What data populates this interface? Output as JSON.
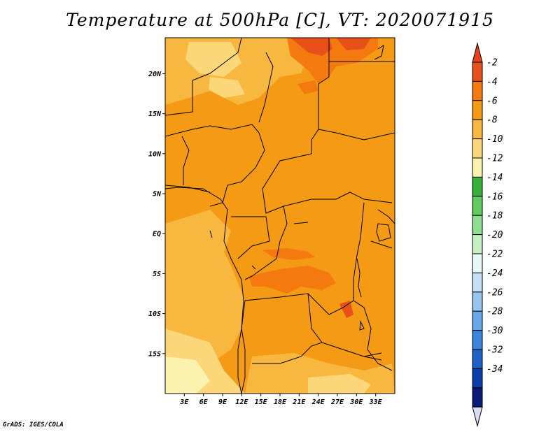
{
  "title": "Temperature at 500hPa [C], VT: 2020071915",
  "credit": "GrADS: IGES/COLA",
  "map": {
    "lon_range": [
      0,
      36
    ],
    "lat_range": [
      -20,
      24.5
    ],
    "lon_ticks": [
      3,
      6,
      9,
      12,
      15,
      18,
      21,
      24,
      27,
      30,
      33
    ],
    "lon_tick_labels": [
      "3E",
      "6E",
      "9E",
      "12E",
      "15E",
      "18E",
      "21E",
      "24E",
      "27E",
      "30E",
      "33E"
    ],
    "lat_ticks": [
      20,
      15,
      10,
      5,
      0,
      -5,
      -10,
      -15
    ],
    "lat_tick_labels": [
      "20N",
      "15N",
      "10N",
      "5N",
      "EQ",
      "5S",
      "10S",
      "15S"
    ]
  },
  "colorbar": {
    "labels": [
      "-2",
      "-4",
      "-6",
      "-8",
      "-10",
      "-12",
      "-14",
      "-16",
      "-18",
      "-20",
      "-22",
      "-24",
      "-26",
      "-28",
      "-30",
      "-32",
      "-34"
    ],
    "colors": [
      "#e8501a",
      "#f47a10",
      "#f59a15",
      "#f8b840",
      "#fbd77a",
      "#fcf2b0",
      "#36b23a",
      "#60cc60",
      "#90de90",
      "#c4f0c4",
      "#e6f8f8",
      "#c4e0f6",
      "#96c6f0",
      "#66a8ea",
      "#3a84e0",
      "#1e60c8",
      "#0a3ea8",
      "#0a1a78"
    ],
    "top_triangle_color": "#e8401a",
    "bottom_triangle_color": "#d8ddf4"
  }
}
